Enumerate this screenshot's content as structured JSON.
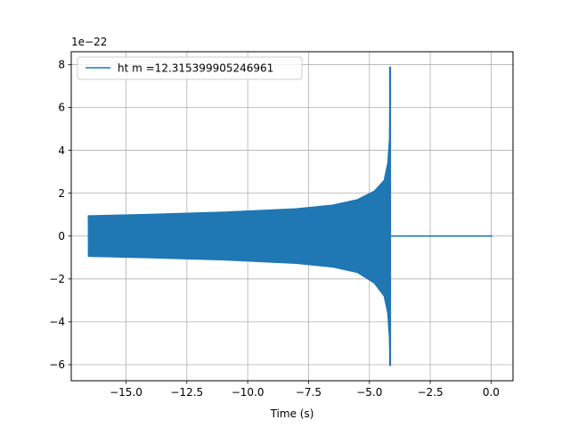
{
  "chart_data": {
    "type": "line",
    "title": "",
    "xlabel": "Time (s)",
    "ylabel": "",
    "y_offset_label": "1e−22",
    "xlim": [
      -17.25,
      0.9
    ],
    "ylim": [
      -6.75,
      8.6
    ],
    "xticks": [
      -15.0,
      -12.5,
      -10.0,
      -7.5,
      -5.0,
      -2.5,
      0.0
    ],
    "xtick_labels": [
      "−15.0",
      "−12.5",
      "−10.0",
      "−7.5",
      "−5.0",
      "−2.5",
      "0.0"
    ],
    "yticks": [
      -6,
      -4,
      -2,
      0,
      2,
      4,
      6,
      8
    ],
    "ytick_labels": [
      "−6",
      "−4",
      "−2",
      "0",
      "2",
      "4",
      "6",
      "8"
    ],
    "grid": true,
    "legend_position": "upper-left",
    "series": [
      {
        "name": "ht m =12.315399905246961",
        "color": "#1f77b4",
        "signal_start": -16.55,
        "merger_time": -4.15,
        "signal_end": 0.05,
        "upper_envelope": [
          [
            -16.55,
            0.95
          ],
          [
            -14.0,
            1.02
          ],
          [
            -11.0,
            1.12
          ],
          [
            -8.0,
            1.28
          ],
          [
            -6.5,
            1.45
          ],
          [
            -5.5,
            1.7
          ],
          [
            -4.8,
            2.1
          ],
          [
            -4.4,
            2.6
          ],
          [
            -4.25,
            3.4
          ],
          [
            -4.18,
            4.5
          ],
          [
            -4.15,
            7.9
          ]
        ],
        "lower_envelope": [
          [
            -16.55,
            -0.95
          ],
          [
            -14.0,
            -1.02
          ],
          [
            -11.0,
            -1.12
          ],
          [
            -8.0,
            -1.28
          ],
          [
            -6.5,
            -1.45
          ],
          [
            -5.5,
            -1.7
          ],
          [
            -4.8,
            -2.2
          ],
          [
            -4.4,
            -2.8
          ],
          [
            -4.25,
            -3.6
          ],
          [
            -4.18,
            -4.8
          ],
          [
            -4.15,
            -6.05
          ]
        ]
      }
    ]
  }
}
